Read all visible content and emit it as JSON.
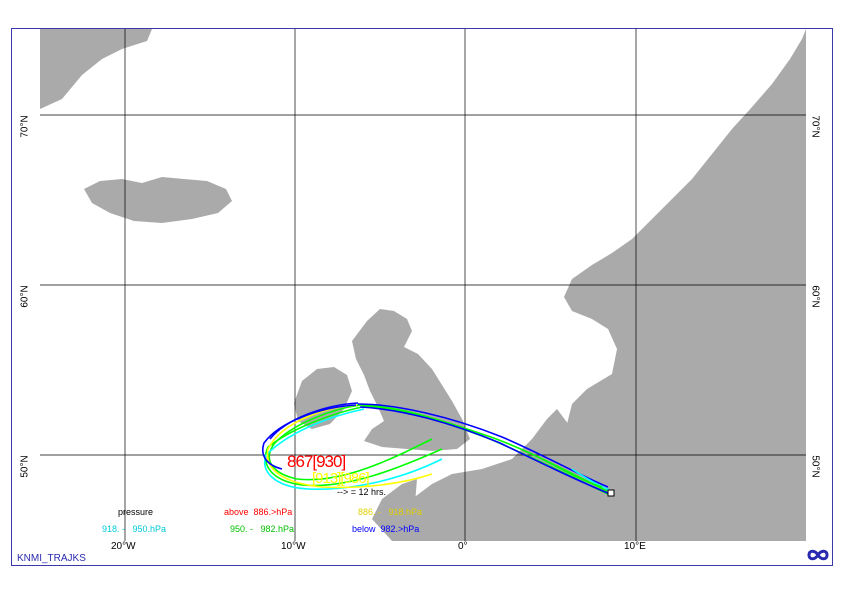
{
  "map": {
    "lon_labels": [
      "20°W",
      "10°W",
      "0°",
      "10°E"
    ],
    "lat_labels": [
      "70°N",
      "60°N",
      "50°N"
    ],
    "colors": {
      "land": "#aaaaaa",
      "sea": "#ffffff",
      "grid": "#000000",
      "frame": "#3a3aa8"
    }
  },
  "legend": {
    "title": "pressure",
    "rows": [
      {
        "label": "above  886.>hPa",
        "color": "#ff0000"
      },
      {
        "label": "886. -   918.hPa",
        "color": "#ffff00"
      },
      {
        "label": "918. -   950.hPa",
        "color": "#00ffff"
      },
      {
        "label": "950. -   982.hPa",
        "color": "#00ff00"
      },
      {
        "label": "below  982.>hPa",
        "color": "#0000ff"
      }
    ]
  },
  "annotations": {
    "arrival_text": "867[930]",
    "second_text": "[913][986]",
    "interval_text": "--> = 12 hrs."
  },
  "footer": {
    "label": "KNMI_TRAJKS"
  },
  "logo": {
    "icon": "knmi-logo-icon",
    "color": "#2a2ab0"
  }
}
